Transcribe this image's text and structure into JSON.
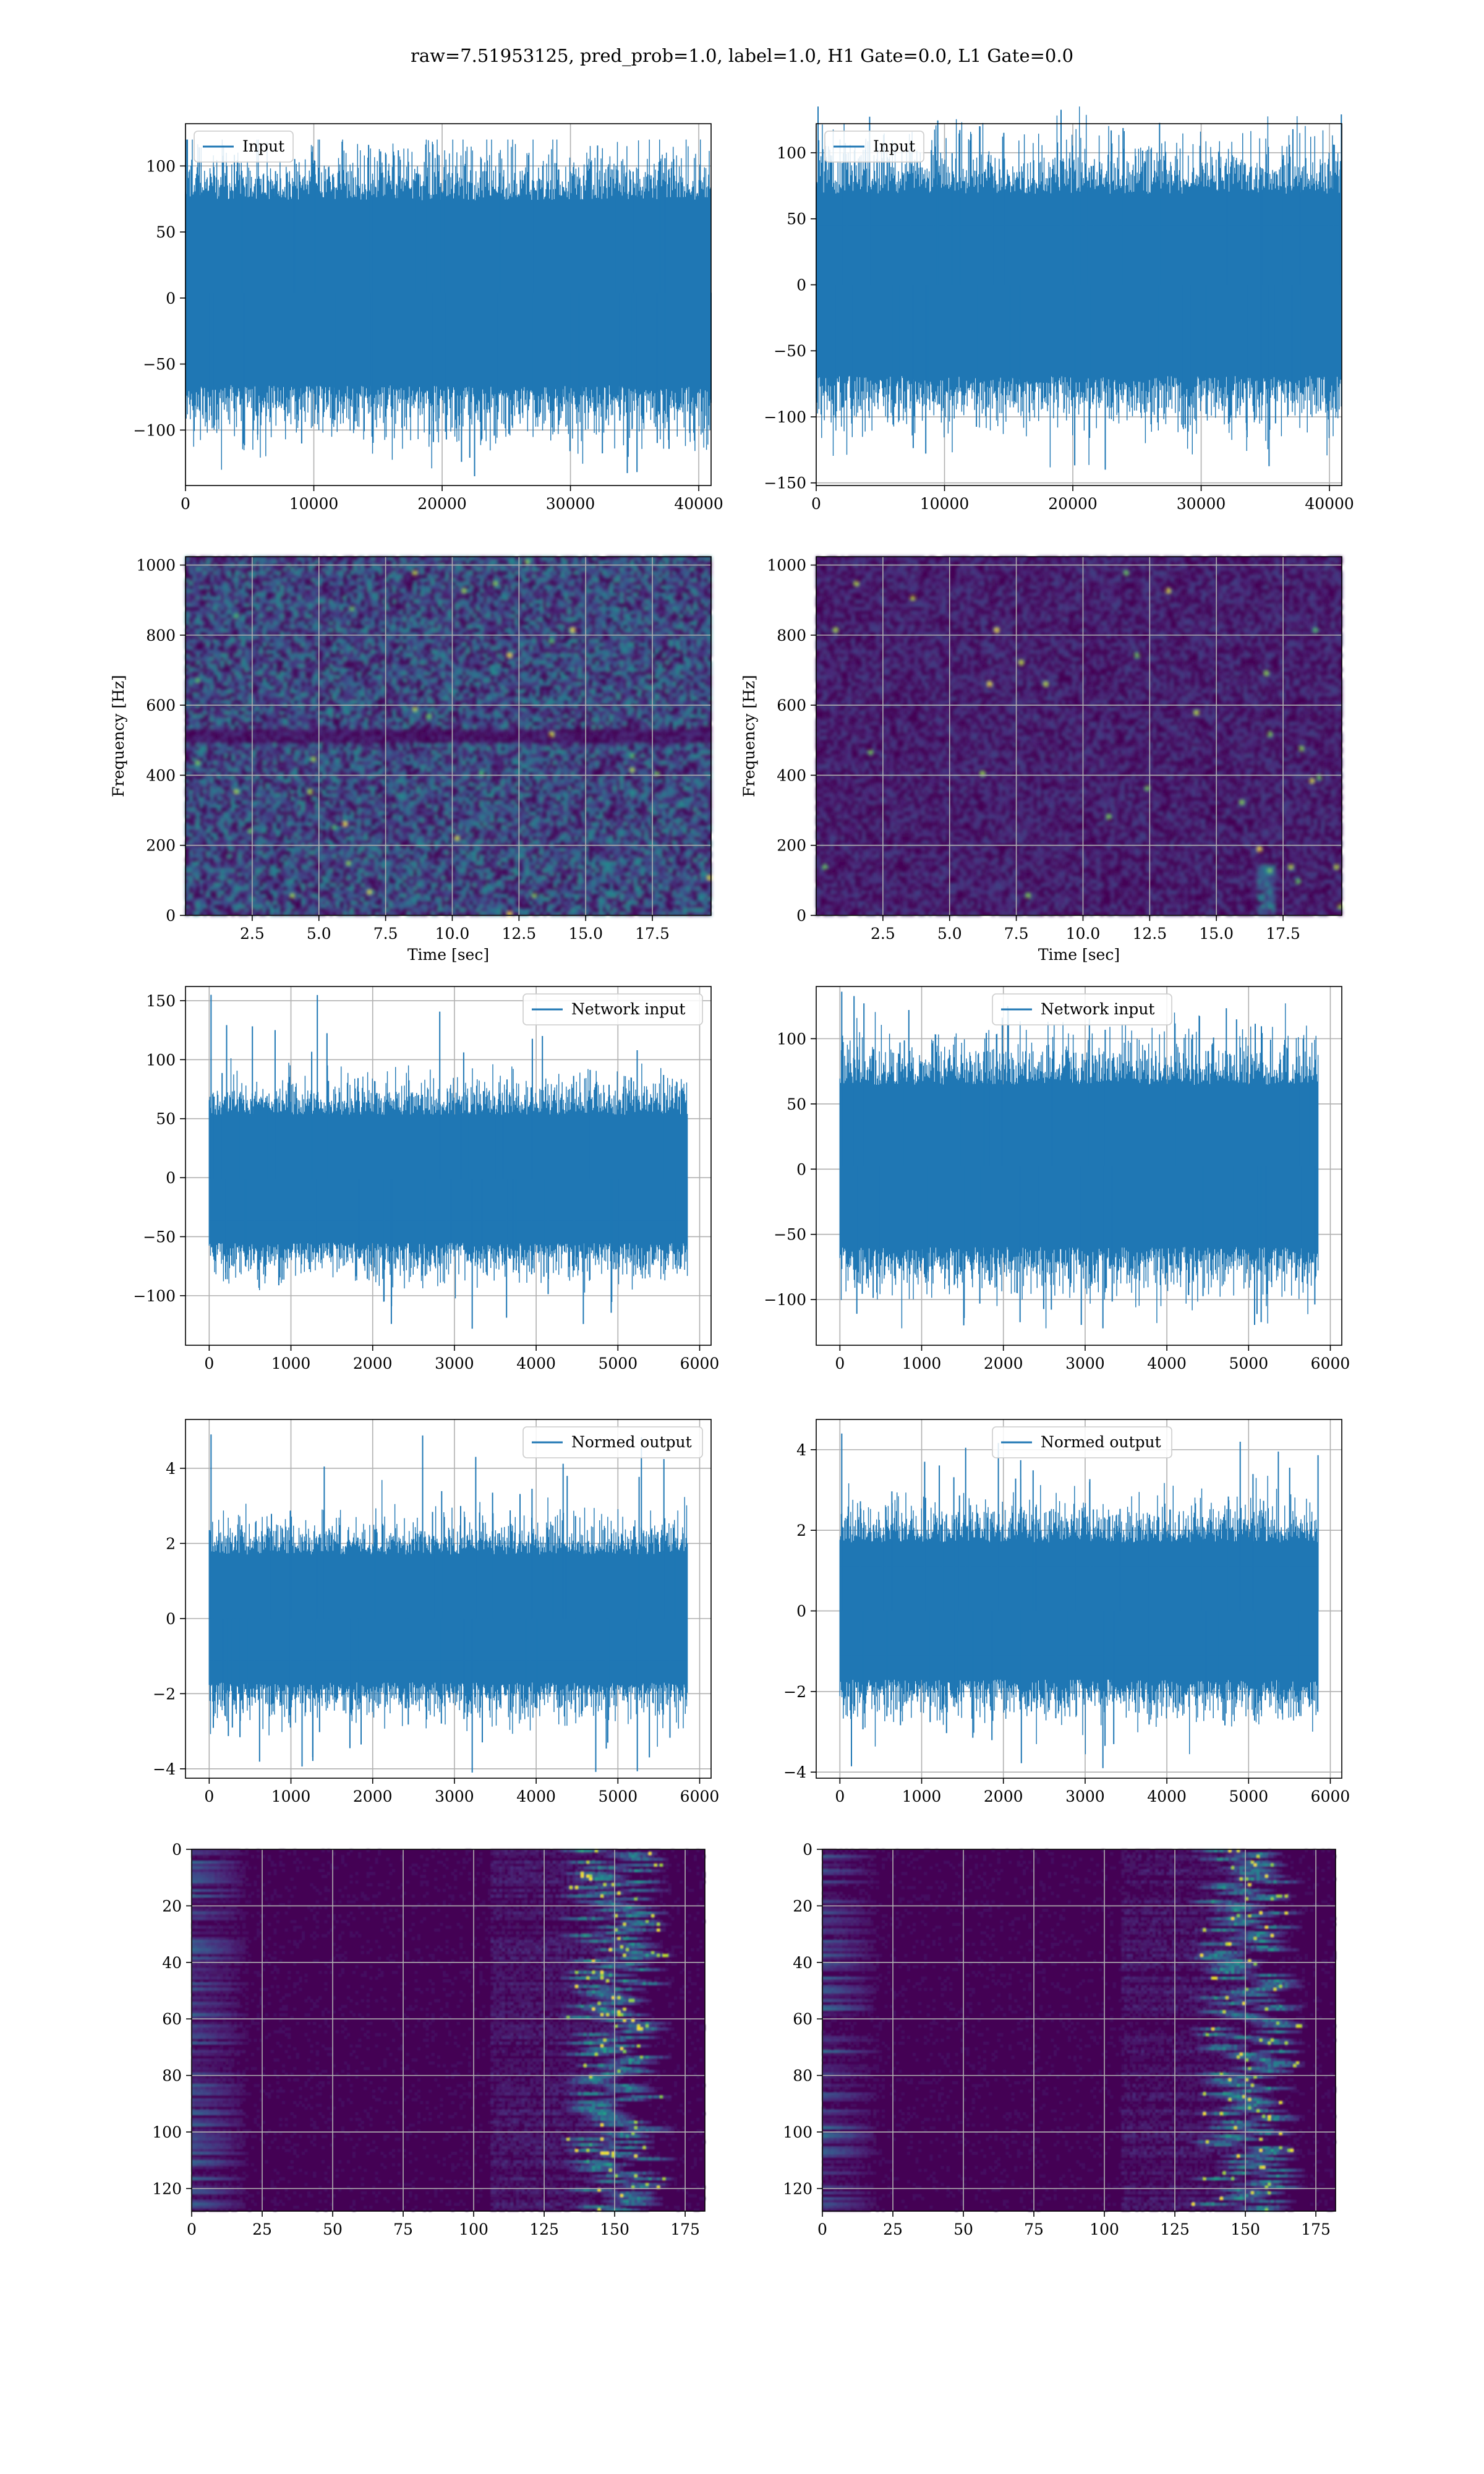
{
  "title": "raw=7.51953125, pred_prob=1.0, label=1.0, H1 Gate=0.0, L1 Gate=0.0",
  "colors": {
    "line": "#1f77b4",
    "grid": "#b0b0b0",
    "viridis_dark": "#440154",
    "viridis_bright": "#fde725"
  },
  "chart_data": [
    {
      "type": "line",
      "row": 1,
      "col": 1,
      "legend": "Input",
      "legend_loc": "upper left",
      "grid": true,
      "n_points": 40960,
      "xlim": [
        0,
        40960
      ],
      "ylim": [
        -142,
        132
      ],
      "xticks": [
        0,
        10000,
        20000,
        30000,
        40000
      ],
      "yticks": [
        -100,
        -50,
        0,
        50,
        100
      ],
      "band": [
        -72,
        80
      ],
      "peak_max": 120,
      "peak_min": -135,
      "xlabel": "",
      "ylabel": ""
    },
    {
      "type": "line",
      "row": 1,
      "col": 2,
      "legend": "Input",
      "legend_loc": "upper left",
      "grid": true,
      "n_points": 40960,
      "xlim": [
        0,
        40960
      ],
      "ylim": [
        -152,
        122
      ],
      "xticks": [
        0,
        10000,
        20000,
        30000,
        40000
      ],
      "yticks": [
        -150,
        -100,
        -50,
        0,
        50,
        100
      ],
      "band": [
        -75,
        75
      ],
      "peak_max": 135,
      "peak_min": -140,
      "xlabel": "",
      "ylabel": ""
    },
    {
      "type": "heatmap",
      "row": 2,
      "col": 1,
      "grid": true,
      "colormap": "viridis",
      "xlim": [
        0,
        19.7
      ],
      "ylim": [
        0,
        1024
      ],
      "xticks": [
        "2.5",
        "5.0",
        "7.5",
        "10.0",
        "12.5",
        "15.0",
        "17.5"
      ],
      "yticks": [
        "0",
        "200",
        "400",
        "600",
        "800",
        "1000"
      ],
      "xlabel": "Time [sec]",
      "ylabel": "Frequency [Hz]"
    },
    {
      "type": "heatmap",
      "row": 2,
      "col": 2,
      "grid": true,
      "colormap": "viridis",
      "xlim": [
        0,
        19.7
      ],
      "ylim": [
        0,
        1024
      ],
      "xticks": [
        "2.5",
        "5.0",
        "7.5",
        "10.0",
        "12.5",
        "15.0",
        "17.5"
      ],
      "yticks": [
        "0",
        "200",
        "400",
        "600",
        "800",
        "1000"
      ],
      "xlabel": "Time [sec]",
      "ylabel": "Frequency [Hz]"
    },
    {
      "type": "line",
      "row": 3,
      "col": 1,
      "legend": "Network input",
      "legend_loc": "upper right",
      "grid": true,
      "n_points": 5850,
      "xlim": [
        -290,
        6140
      ],
      "ylim": [
        -142,
        162
      ],
      "xticks": [
        0,
        1000,
        2000,
        3000,
        4000,
        5000,
        6000
      ],
      "yticks": [
        -100,
        -50,
        0,
        50,
        100,
        150
      ],
      "band": [
        -60,
        58
      ],
      "peak_max": 155,
      "peak_min": -128,
      "xlabel": "",
      "ylabel": ""
    },
    {
      "type": "line",
      "row": 3,
      "col": 2,
      "legend": "Network input",
      "legend_loc": "upper center",
      "grid": true,
      "n_points": 5850,
      "xlim": [
        -290,
        6140
      ],
      "ylim": [
        -135,
        140
      ],
      "xticks": [
        0,
        1000,
        2000,
        3000,
        4000,
        5000,
        6000
      ],
      "yticks": [
        -100,
        -50,
        0,
        50,
        100
      ],
      "band": [
        -65,
        70
      ],
      "peak_max": 136,
      "peak_min": -122,
      "xlabel": "",
      "ylabel": ""
    },
    {
      "type": "line",
      "row": 4,
      "col": 1,
      "legend": "Normed output",
      "legend_loc": "upper right",
      "grid": true,
      "n_points": 5850,
      "xlim": [
        -290,
        6140
      ],
      "ylim": [
        -4.25,
        5.3
      ],
      "xticks": [
        0,
        1000,
        2000,
        3000,
        4000,
        5000,
        6000
      ],
      "yticks": [
        -4,
        -2,
        0,
        2,
        4
      ],
      "band": [
        -1.85,
        1.85
      ],
      "peak_max": 4.9,
      "peak_min": -4.1,
      "xlabel": "",
      "ylabel": ""
    },
    {
      "type": "line",
      "row": 4,
      "col": 2,
      "legend": "Normed output",
      "legend_loc": "upper center",
      "grid": true,
      "n_points": 5850,
      "xlim": [
        -290,
        6140
      ],
      "ylim": [
        -4.15,
        4.75
      ],
      "xticks": [
        0,
        1000,
        2000,
        3000,
        4000,
        5000,
        6000
      ],
      "yticks": [
        -4,
        -2,
        0,
        2,
        4
      ],
      "band": [
        -1.85,
        1.85
      ],
      "peak_max": 4.4,
      "peak_min": -3.9,
      "xlabel": "",
      "ylabel": ""
    },
    {
      "type": "heatmap",
      "row": 5,
      "col": 1,
      "grid": true,
      "colormap": "viridis",
      "y_inverted": true,
      "xlim": [
        0,
        182
      ],
      "ylim": [
        128,
        0
      ],
      "xticks": [
        "0",
        "25",
        "50",
        "75",
        "100",
        "125",
        "150",
        "175"
      ],
      "yticks": [
        "0",
        "20",
        "40",
        "60",
        "80",
        "100",
        "120"
      ],
      "xlabel": "",
      "ylabel": ""
    },
    {
      "type": "heatmap",
      "row": 5,
      "col": 2,
      "grid": true,
      "colormap": "viridis",
      "y_inverted": true,
      "xlim": [
        0,
        182
      ],
      "ylim": [
        128,
        0
      ],
      "xticks": [
        "0",
        "25",
        "50",
        "75",
        "100",
        "125",
        "150",
        "175"
      ],
      "yticks": [
        "0",
        "20",
        "40",
        "60",
        "80",
        "100",
        "120"
      ],
      "xlabel": "",
      "ylabel": ""
    }
  ]
}
